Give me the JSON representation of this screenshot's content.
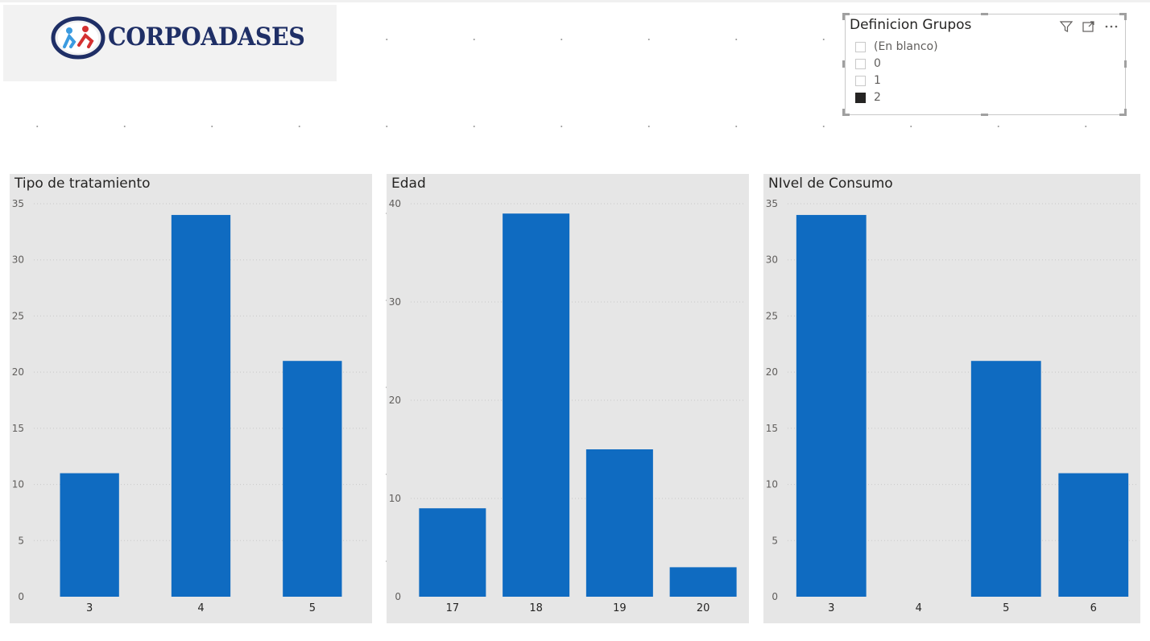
{
  "logo": {
    "text": "CORPOADASES"
  },
  "slicer": {
    "title": "Definicion Grupos",
    "items": [
      {
        "label": "(En blanco)",
        "checked": false
      },
      {
        "label": "0",
        "checked": false
      },
      {
        "label": "1",
        "checked": false
      },
      {
        "label": "2",
        "checked": true
      }
    ],
    "icons": [
      "filter-icon",
      "focus-mode-icon",
      "more-options-icon"
    ]
  },
  "colors": {
    "bar": "#0f6bc1",
    "panel": "#e6e6e6",
    "gridline": "#c8c8c8"
  },
  "chart_data": [
    {
      "type": "bar",
      "title": "Tipo de tratamiento",
      "categories": [
        "3",
        "4",
        "5"
      ],
      "values": [
        11,
        34,
        21
      ],
      "yticks": [
        0,
        5,
        10,
        15,
        20,
        25,
        30,
        35
      ],
      "ylim": [
        0,
        35
      ],
      "xlabel": "",
      "ylabel": "",
      "grid": true
    },
    {
      "type": "bar",
      "title": "Edad",
      "categories": [
        "17",
        "18",
        "19",
        "20"
      ],
      "values": [
        9,
        39,
        15,
        3
      ],
      "yticks": [
        0,
        10,
        20,
        30,
        40
      ],
      "ylim": [
        0,
        40
      ],
      "xlabel": "",
      "ylabel": "",
      "grid": true
    },
    {
      "type": "bar",
      "title": "NIvel de Consumo",
      "categories": [
        "3",
        "4",
        "5",
        "6"
      ],
      "values": [
        34,
        0,
        21,
        11
      ],
      "yticks": [
        0,
        5,
        10,
        15,
        20,
        25,
        30,
        35
      ],
      "ylim": [
        0,
        35
      ],
      "xlabel": "",
      "ylabel": "",
      "grid": true
    }
  ]
}
